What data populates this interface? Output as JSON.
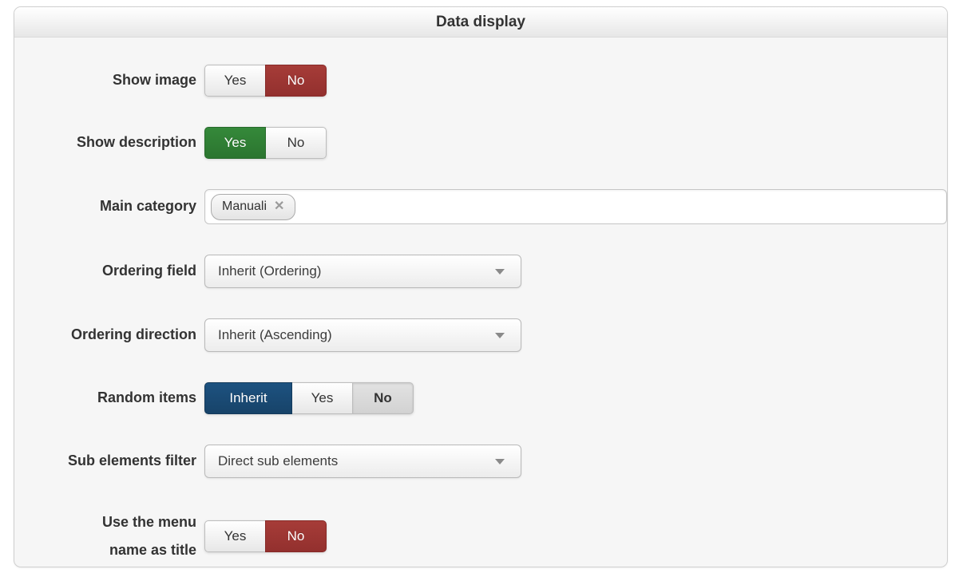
{
  "panel": {
    "title": "Data display"
  },
  "colors": {
    "danger_red": "#9c3231",
    "success_green": "#2f7d33",
    "inherit_blue": "#1a4a72"
  },
  "fields": [
    {
      "id": "show_image",
      "label": "Show image",
      "options": [
        "Yes",
        "No"
      ],
      "selected": "No"
    },
    {
      "id": "show_description",
      "label": "Show description",
      "options": [
        "Yes",
        "No"
      ],
      "selected": "Yes"
    },
    {
      "id": "main_category",
      "label": "Main category",
      "tags": [
        {
          "text": "Manuali",
          "remove_glyph": "✕"
        }
      ],
      "value": ""
    },
    {
      "id": "ordering_field",
      "label": "Ordering field",
      "value": "Inherit (Ordering)"
    },
    {
      "id": "ordering_direction",
      "label": "Ordering direction",
      "value": "Inherit (Ascending)"
    },
    {
      "id": "random_items",
      "label": "Random items",
      "options": [
        "Inherit",
        "Yes",
        "No"
      ],
      "selected": "Inherit"
    },
    {
      "id": "sub_elements_filter",
      "label": "Sub elements filter",
      "value": "Direct sub elements"
    },
    {
      "id": "use_menu_name_as_title",
      "label_lines": [
        "Use the menu",
        "name as title"
      ],
      "options": [
        "Yes",
        "No"
      ],
      "selected": "No"
    }
  ]
}
